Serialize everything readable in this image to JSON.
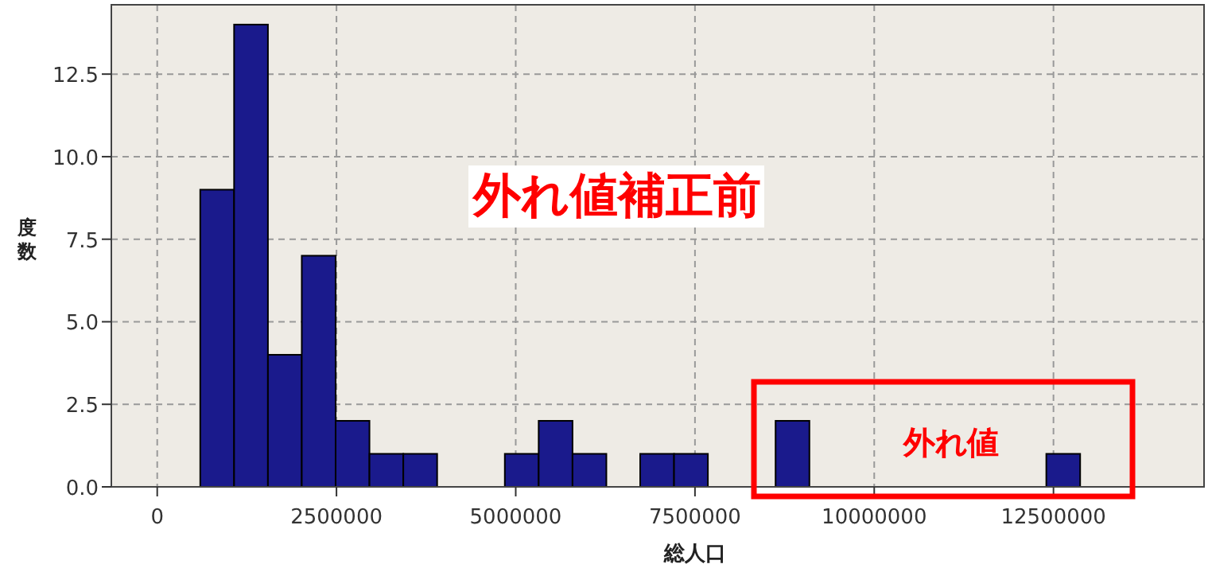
{
  "chart_data": {
    "type": "histogram",
    "xlabel": "総人口",
    "ylabel": "度数",
    "bins": [
      600000,
      1072000,
      1544000,
      2016000,
      2488000,
      2960000,
      3432000,
      3904000,
      4376000,
      4848000,
      5320000,
      5792000,
      6264000,
      6736000,
      7208000,
      7680000,
      8152000,
      8624000,
      9096000,
      9568000,
      10040000,
      10512000,
      10984000,
      11456000,
      11928000,
      12400000,
      12872000
    ],
    "values": [
      9,
      14,
      4,
      7,
      2,
      1,
      1,
      0,
      0,
      1,
      2,
      1,
      0,
      1,
      1,
      0,
      0,
      2,
      0,
      0,
      0,
      0,
      0,
      0,
      0,
      1
    ],
    "color": "#1a1a8c",
    "xlim": [
      -640000,
      14600000
    ],
    "ylim": [
      0,
      14.6
    ],
    "xticks": [
      0,
      2500000,
      5000000,
      7500000,
      10000000,
      12500000
    ],
    "yticks": [
      {
        "value": 0,
        "label": "0.0"
      },
      {
        "value": 2.5,
        "label": "2.5"
      },
      {
        "value": 5,
        "label": "5.0"
      },
      {
        "value": 7.5,
        "label": "7.5"
      },
      {
        "value": 10,
        "label": "10.0"
      },
      {
        "value": 12.5,
        "label": "12.5"
      }
    ],
    "grid": true,
    "annotations": [
      "外れ値補正前",
      "外れ値"
    ]
  }
}
